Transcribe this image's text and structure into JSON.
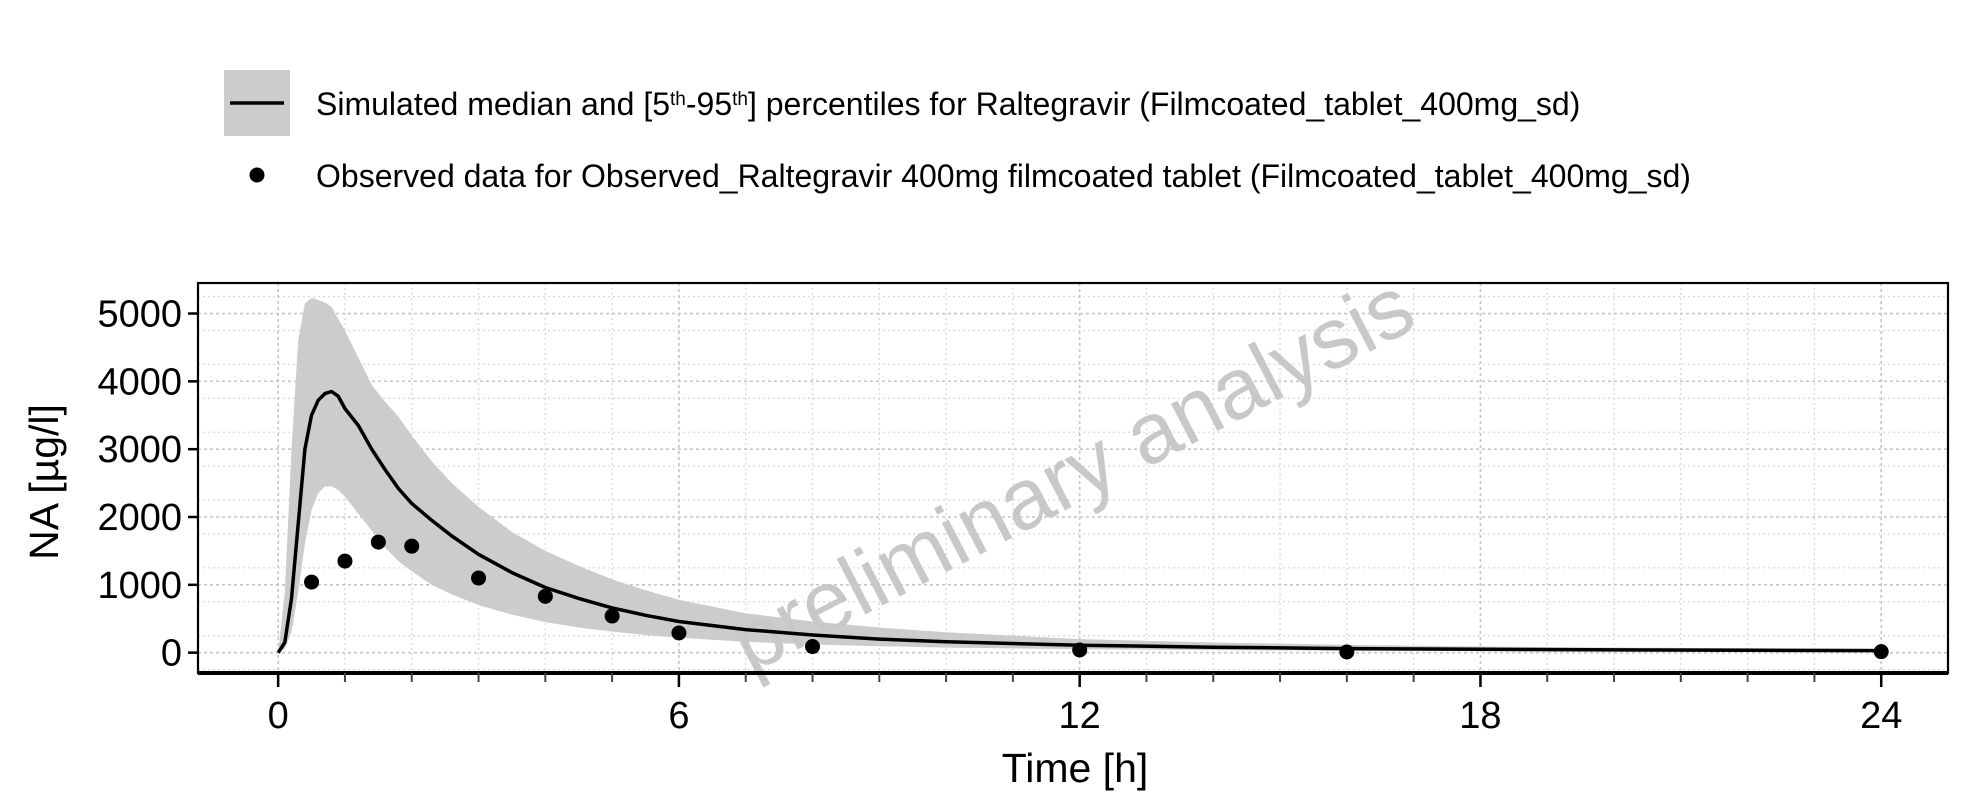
{
  "chart_data": {
    "type": "line",
    "title": "",
    "xlabel": "Time [h]",
    "ylabel": "NA [µg/l]",
    "xlim": [
      -1.2,
      25
    ],
    "ylim": [
      -300,
      5450
    ],
    "x_ticks": [
      0,
      6,
      12,
      18,
      24
    ],
    "y_ticks": [
      0,
      1000,
      2000,
      3000,
      4000,
      5000
    ],
    "grid": true,
    "legend_position": "top",
    "watermark": "preliminary analysis",
    "legend": [
      {
        "kind": "ribbon-line",
        "label_pre": "Simulated median and [5",
        "sup1": "th",
        "mid": "-95",
        "sup2": "th",
        "label_post": "] percentiles for Raltegravir (Filmcoated_tablet_400mg_sd)"
      },
      {
        "kind": "point",
        "label": "Observed data for Observed_Raltegravir 400mg filmcoated tablet (Filmcoated_tablet_400mg_sd)"
      }
    ],
    "series": [
      {
        "name": "Simulated median",
        "type": "line",
        "color": "#000000",
        "x": [
          0,
          0.1,
          0.2,
          0.3,
          0.4,
          0.5,
          0.6,
          0.7,
          0.8,
          0.9,
          1.0,
          1.2,
          1.4,
          1.6,
          1.8,
          2.0,
          2.3,
          2.6,
          3.0,
          3.5,
          4.0,
          4.5,
          5.0,
          5.5,
          6.0,
          7.0,
          8.0,
          9.0,
          10.0,
          12.0,
          14.0,
          16.0,
          18.0,
          20.0,
          22.0,
          24.0
        ],
        "y": [
          0,
          150,
          800,
          1900,
          3000,
          3500,
          3720,
          3820,
          3850,
          3780,
          3600,
          3350,
          3000,
          2700,
          2420,
          2200,
          1950,
          1720,
          1450,
          1180,
          960,
          800,
          660,
          550,
          460,
          340,
          260,
          200,
          160,
          110,
          80,
          60,
          50,
          40,
          35,
          30
        ]
      },
      {
        "name": "Simulated 5th-95th percentiles",
        "type": "band",
        "color": "#cccccc",
        "x": [
          0,
          0.1,
          0.2,
          0.3,
          0.4,
          0.5,
          0.6,
          0.7,
          0.8,
          0.9,
          1.0,
          1.2,
          1.4,
          1.6,
          1.8,
          2.0,
          2.3,
          2.6,
          3.0,
          3.5,
          4.0,
          4.5,
          5.0,
          5.5,
          6.0,
          7.0,
          8.0,
          9.0,
          10.0,
          12.0,
          14.0,
          16.0,
          18.0,
          20.0,
          22.0,
          24.0
        ],
        "lower": [
          0,
          60,
          300,
          900,
          1600,
          2100,
          2350,
          2450,
          2450,
          2400,
          2300,
          2050,
          1800,
          1550,
          1350,
          1200,
          1000,
          860,
          700,
          560,
          450,
          370,
          310,
          260,
          220,
          160,
          120,
          95,
          75,
          50,
          38,
          28,
          22,
          18,
          15,
          12
        ],
        "upper": [
          0,
          900,
          3000,
          4600,
          5150,
          5230,
          5200,
          5160,
          5100,
          4920,
          4750,
          4350,
          3950,
          3700,
          3480,
          3200,
          2820,
          2500,
          2150,
          1780,
          1500,
          1280,
          1080,
          920,
          780,
          580,
          460,
          370,
          300,
          200,
          150,
          115,
          90,
          75,
          65,
          55
        ]
      },
      {
        "name": "Observed data",
        "type": "scatter",
        "color": "#000000",
        "x": [
          0.5,
          1.0,
          1.5,
          2.0,
          3.0,
          4.0,
          5.0,
          6.0,
          8.0,
          12.0,
          16.0,
          24.0
        ],
        "y": [
          1040,
          1350,
          1630,
          1570,
          1100,
          830,
          540,
          290,
          90,
          40,
          10,
          15
        ]
      }
    ]
  }
}
